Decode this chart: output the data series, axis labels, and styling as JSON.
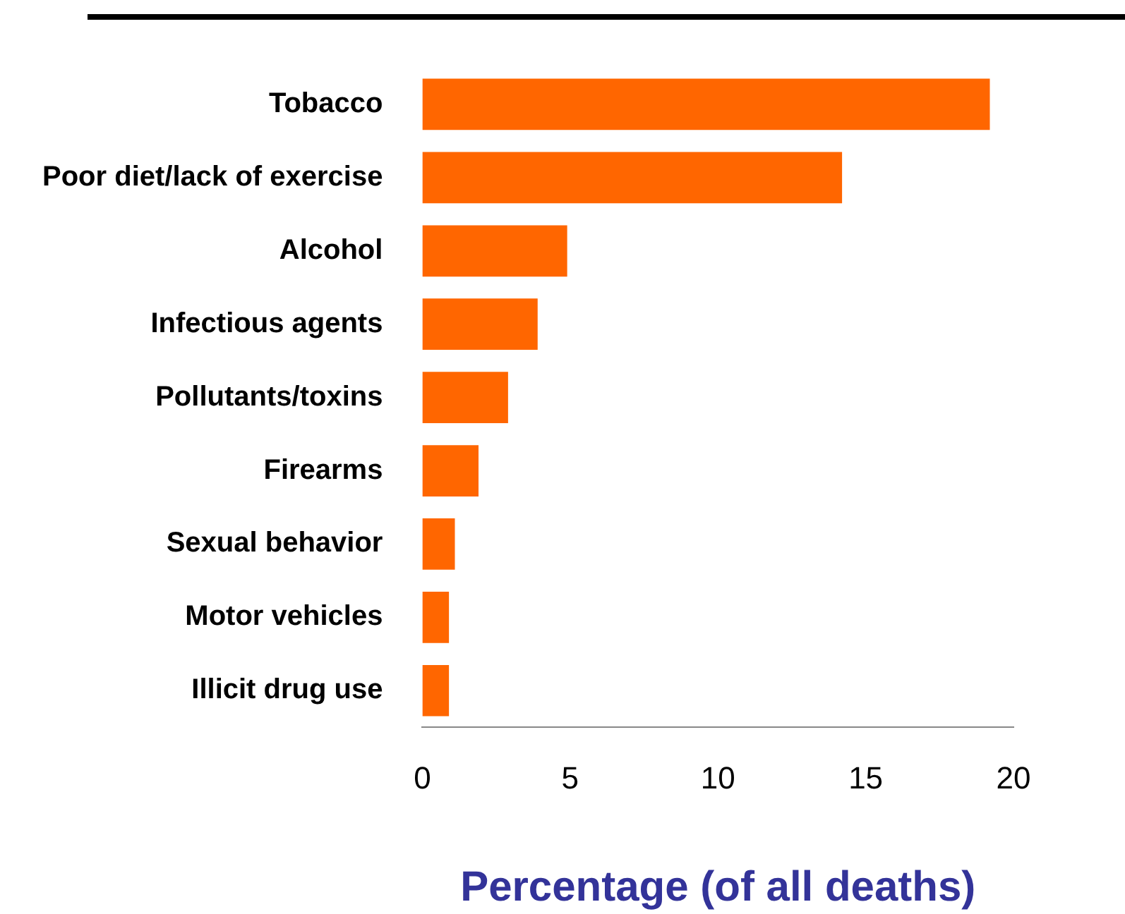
{
  "chart_data": {
    "type": "bar",
    "orientation": "horizontal",
    "xlabel": "Percentage (of all deaths)",
    "categories": [
      "Tobacco",
      "Poor diet/lack of exercise",
      "Alcohol",
      "Infectious agents",
      "Pollutants/toxins",
      "Firearms",
      "Sexual behavior",
      "Motor vehicles",
      "Illicit drug use"
    ],
    "values": [
      19.2,
      14.2,
      4.9,
      3.9,
      2.9,
      1.9,
      1.1,
      0.9,
      0.9
    ],
    "color": "#ff6600",
    "xlim": [
      0,
      20
    ],
    "xticks": [
      0,
      5,
      10,
      15,
      20
    ],
    "grid": false,
    "legend": false
  }
}
